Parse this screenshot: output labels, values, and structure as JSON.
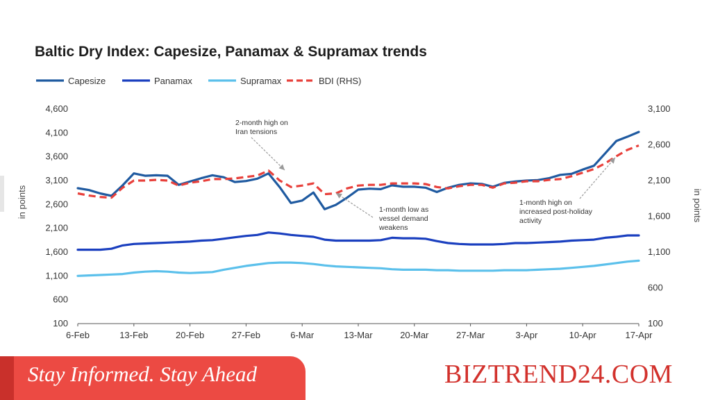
{
  "chart_data": {
    "type": "line",
    "title": "Baltic Dry Index: Capesize, Panamax & Supramax trends",
    "ylabel_left": "in points",
    "ylabel_right": "in points",
    "ylim_left": [
      100,
      4600
    ],
    "ylim_right": [
      100,
      3100
    ],
    "yticks_left": [
      "4,600",
      "4,100",
      "3,600",
      "3,100",
      "2,600",
      "2,100",
      "1,600",
      "1,100",
      "600",
      "100"
    ],
    "yticks_right": [
      "3,100",
      "2,600",
      "2,100",
      "1,600",
      "1,100",
      "600",
      "100"
    ],
    "xticks": [
      "6-Feb",
      "13-Feb",
      "20-Feb",
      "27-Feb",
      "6-Mar",
      "13-Mar",
      "20-Mar",
      "27-Mar",
      "3-Apr",
      "10-Apr",
      "17-Apr"
    ],
    "x": [
      "6-Feb",
      "7-Feb",
      "10-Feb",
      "11-Feb",
      "12-Feb",
      "13-Feb",
      "14-Feb",
      "17-Feb",
      "18-Feb",
      "19-Feb",
      "20-Feb",
      "21-Feb",
      "24-Feb",
      "25-Feb",
      "26-Feb",
      "27-Feb",
      "28-Feb",
      "3-Mar",
      "4-Mar",
      "5-Mar",
      "6-Mar",
      "7-Mar",
      "10-Mar",
      "11-Mar",
      "12-Mar",
      "13-Mar",
      "14-Mar",
      "17-Mar",
      "18-Mar",
      "19-Mar",
      "20-Mar",
      "21-Mar",
      "24-Mar",
      "25-Mar",
      "26-Mar",
      "27-Mar",
      "28-Mar",
      "31-Mar",
      "1-Apr",
      "2-Apr",
      "3-Apr",
      "4-Apr",
      "7-Apr",
      "8-Apr",
      "9-Apr",
      "10-Apr",
      "11-Apr",
      "14-Apr",
      "15-Apr",
      "16-Apr",
      "17-Apr"
    ],
    "series": [
      {
        "name": "Capesize",
        "axis": "left",
        "color": "#1f5aa0",
        "dash": "solid",
        "values": [
          2940,
          2900,
          2830,
          2780,
          3000,
          3250,
          3200,
          3210,
          3200,
          3010,
          3080,
          3150,
          3210,
          3170,
          3070,
          3090,
          3140,
          3250,
          2960,
          2630,
          2680,
          2850,
          2500,
          2590,
          2740,
          2910,
          2930,
          2920,
          3000,
          2970,
          2970,
          2950,
          2860,
          2950,
          3010,
          3040,
          3030,
          2970,
          3050,
          3080,
          3100,
          3110,
          3150,
          3220,
          3240,
          3330,
          3410,
          3670,
          3930,
          4020,
          4120
        ]
      },
      {
        "name": "Panamax",
        "axis": "left",
        "color": "#1a3fbf",
        "dash": "solid",
        "values": [
          1650,
          1650,
          1650,
          1670,
          1740,
          1770,
          1780,
          1790,
          1800,
          1810,
          1820,
          1840,
          1850,
          1880,
          1910,
          1940,
          1960,
          2010,
          1990,
          1960,
          1940,
          1920,
          1860,
          1840,
          1840,
          1840,
          1840,
          1850,
          1900,
          1890,
          1890,
          1880,
          1830,
          1790,
          1770,
          1760,
          1760,
          1760,
          1770,
          1790,
          1790,
          1800,
          1810,
          1820,
          1840,
          1850,
          1860,
          1900,
          1920,
          1950,
          1950
        ]
      },
      {
        "name": "Supramax",
        "axis": "left",
        "color": "#5bc0eb",
        "dash": "solid",
        "values": [
          1100,
          1110,
          1120,
          1130,
          1140,
          1170,
          1190,
          1200,
          1190,
          1170,
          1160,
          1170,
          1180,
          1230,
          1270,
          1310,
          1340,
          1370,
          1380,
          1380,
          1370,
          1350,
          1320,
          1300,
          1290,
          1280,
          1270,
          1260,
          1240,
          1230,
          1230,
          1230,
          1220,
          1220,
          1210,
          1210,
          1210,
          1210,
          1220,
          1220,
          1220,
          1230,
          1240,
          1250,
          1270,
          1290,
          1310,
          1340,
          1370,
          1400,
          1420
        ]
      },
      {
        "name": "BDI (RHS)",
        "axis": "right",
        "color": "#e8403b",
        "dash": "dashed",
        "values": [
          1920,
          1890,
          1870,
          1860,
          2000,
          2100,
          2100,
          2110,
          2100,
          2030,
          2070,
          2090,
          2120,
          2120,
          2130,
          2150,
          2170,
          2240,
          2100,
          2010,
          2030,
          2060,
          1910,
          1920,
          1990,
          2030,
          2040,
          2040,
          2060,
          2060,
          2060,
          2050,
          2010,
          1990,
          2020,
          2040,
          2040,
          2000,
          2060,
          2070,
          2090,
          2090,
          2110,
          2120,
          2160,
          2210,
          2260,
          2340,
          2440,
          2530,
          2590
        ]
      }
    ],
    "annotations": [
      {
        "lines": [
          "2-month high on",
          "Iran tensions"
        ]
      },
      {
        "lines": [
          "1-month low as",
          "vessel demand",
          "weakens"
        ]
      },
      {
        "lines": [
          "1-month high on",
          "increased post-holiday",
          "activity"
        ]
      }
    ],
    "legend_position": "top-left",
    "grid": false
  },
  "banner": {
    "slogan": "Stay Informed. Stay Ahead",
    "brand": "BIZTREND24.COM",
    "slogan_bg": "#ec4a43",
    "brand_color": "#d2312c"
  }
}
